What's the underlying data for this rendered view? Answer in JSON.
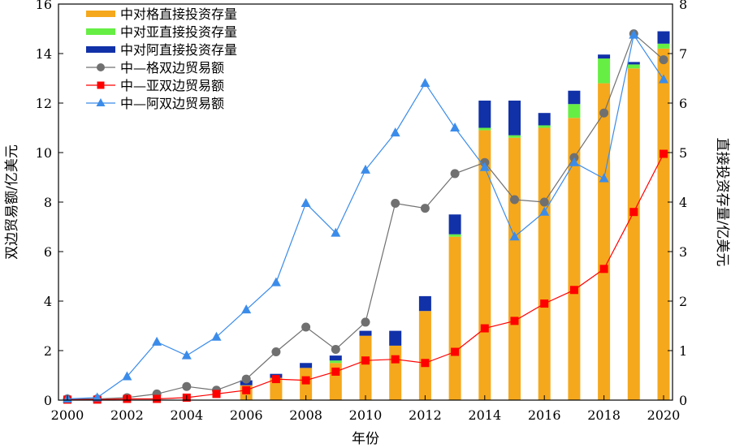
{
  "chart_data": {
    "type": "bar+line",
    "title": "",
    "x": [
      2000,
      2001,
      2002,
      2003,
      2004,
      2005,
      2006,
      2007,
      2008,
      2009,
      2010,
      2011,
      2012,
      2013,
      2014,
      2015,
      2016,
      2017,
      2018,
      2019,
      2020
    ],
    "xticks": [
      2000,
      2002,
      2004,
      2006,
      2008,
      2010,
      2012,
      2014,
      2016,
      2018,
      2020
    ],
    "xlabel": "年份",
    "ylabel_left": "双边贸易额/亿美元",
    "ylabel_right": "直接投资存量/亿美元",
    "ylim_left": [
      0,
      16
    ],
    "yticks_left": [
      0,
      2,
      4,
      6,
      8,
      10,
      12,
      14,
      16
    ],
    "ylim_right": [
      0,
      8
    ],
    "yticks_right": [
      0,
      1,
      2,
      3,
      4,
      5,
      6,
      7,
      8
    ],
    "grid": false,
    "legend_position": "top-left",
    "bar_series": [
      {
        "name": "中对格直接投资存量",
        "color": "#F5A81C",
        "axis": "right",
        "values": [
          0,
          0,
          0,
          0,
          0,
          0,
          0.3,
          0.45,
          0.65,
          0.75,
          1.3,
          1.1,
          1.8,
          3.3,
          5.45,
          5.3,
          5.5,
          5.7,
          6.4,
          6.7,
          7.1
        ]
      },
      {
        "name": "中对亚直接投资存量",
        "color": "#66EE44",
        "axis": "right",
        "values": [
          0,
          0,
          0,
          0,
          0,
          0,
          0,
          0,
          0,
          0.05,
          0,
          0,
          0,
          0.05,
          0.05,
          0.05,
          0.05,
          0.28,
          0.5,
          0.08,
          0.1
        ]
      },
      {
        "name": "中对阿直接投资存量",
        "color": "#1131A8",
        "axis": "right",
        "values": [
          0,
          0,
          0,
          0,
          0,
          0,
          0.1,
          0.08,
          0.1,
          0.1,
          0.1,
          0.3,
          0.3,
          0.4,
          0.55,
          0.7,
          0.25,
          0.27,
          0.08,
          0.05,
          0.25
        ]
      }
    ],
    "line_series": [
      {
        "name": "中—格双边贸易额",
        "color": "#707070",
        "marker": "circle",
        "axis": "left",
        "values": [
          0.05,
          0.05,
          0.1,
          0.25,
          0.55,
          0.4,
          0.85,
          1.95,
          2.95,
          2.05,
          3.15,
          7.95,
          7.75,
          9.15,
          9.6,
          8.1,
          8.0,
          9.8,
          11.6,
          14.8,
          13.75
        ]
      },
      {
        "name": "中—亚双边贸易额",
        "color": "#FF0000",
        "marker": "square",
        "axis": "left",
        "values": [
          0.02,
          0.02,
          0.05,
          0.05,
          0.1,
          0.25,
          0.4,
          0.85,
          0.8,
          1.15,
          1.6,
          1.65,
          1.5,
          1.95,
          2.9,
          3.2,
          3.9,
          4.45,
          5.3,
          7.6,
          9.95
        ]
      },
      {
        "name": "中—阿双边贸易额",
        "color": "#3B8CEA",
        "marker": "triangle",
        "axis": "left",
        "values": [
          0.05,
          0.1,
          0.95,
          2.35,
          1.8,
          2.55,
          3.65,
          4.75,
          7.95,
          6.75,
          9.3,
          10.8,
          12.8,
          11.0,
          9.4,
          6.6,
          7.6,
          9.6,
          8.95,
          14.75,
          12.95
        ]
      }
    ]
  }
}
